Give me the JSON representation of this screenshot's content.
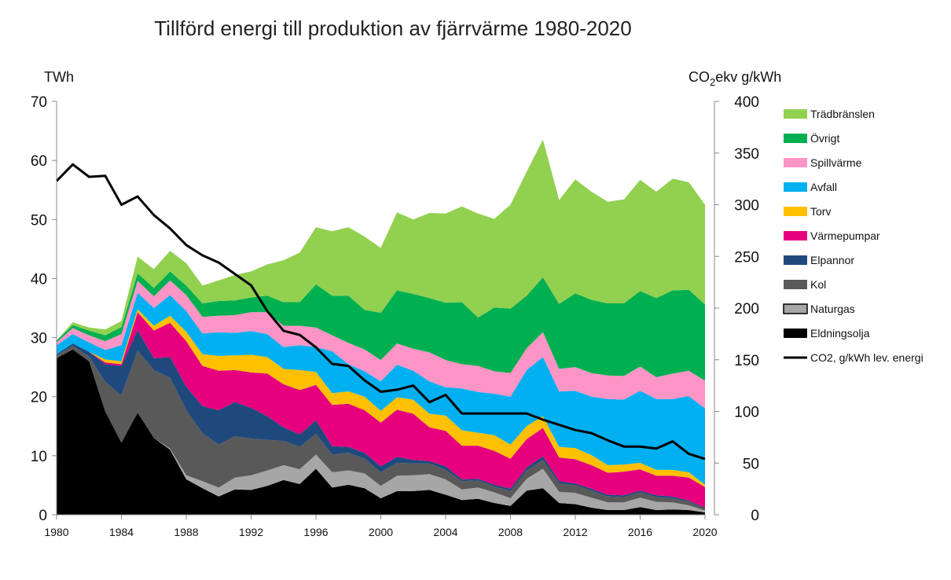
{
  "chart_data": {
    "type": "area",
    "title": "Tillförd energi till produktion av fjärrvärme 1980-2020",
    "ylabel_left": "TWh",
    "ylabel_right_base": "CO",
    "ylabel_right_sub": "2",
    "ylabel_right_rest": "ekv g/kWh",
    "ylim_left": [
      0,
      70
    ],
    "ylim_right": [
      0,
      400
    ],
    "yticks_left": [
      "0",
      "10",
      "20",
      "30",
      "40",
      "50",
      "60",
      "70"
    ],
    "yticks_right": [
      "0",
      "50",
      "100",
      "150",
      "200",
      "250",
      "300",
      "350",
      "400"
    ],
    "xlim": [
      1980,
      2020
    ],
    "xticks": [
      "1980",
      "1984",
      "1988",
      "1992",
      "1996",
      "2000",
      "2004",
      "2008",
      "2012",
      "2016",
      "2020"
    ],
    "stacked": true,
    "legend_position": "right",
    "x": [
      1980,
      1981,
      1982,
      1983,
      1984,
      1985,
      1986,
      1987,
      1988,
      1989,
      1990,
      1991,
      1992,
      1993,
      1994,
      1995,
      1996,
      1997,
      1998,
      1999,
      2000,
      2001,
      2002,
      2003,
      2004,
      2005,
      2006,
      2007,
      2008,
      2009,
      2010,
      2011,
      2012,
      2013,
      2014,
      2015,
      2016,
      2017,
      2018,
      2019,
      2020
    ],
    "series": [
      {
        "name": "Eldningsolja",
        "color": "#000000",
        "values": [
          26.5,
          28.0,
          26.0,
          17.5,
          12.2,
          17.3,
          13.0,
          11.0,
          6.0,
          4.5,
          3.1,
          4.3,
          4.2,
          4.9,
          5.9,
          5.2,
          7.8,
          4.6,
          5.1,
          4.5,
          2.8,
          4.0,
          4.0,
          4.2,
          3.4,
          2.5,
          2.7,
          2.0,
          1.5,
          4.1,
          4.5,
          2.0,
          1.8,
          1.2,
          0.8,
          0.8,
          1.3,
          0.8,
          0.9,
          0.8,
          0.4
        ]
      },
      {
        "name": "Naturgas",
        "color": "#a6a6a6",
        "values": [
          0,
          0,
          0,
          0,
          0,
          0,
          0,
          0.2,
          0.7,
          1.2,
          1.5,
          2.0,
          2.5,
          2.6,
          2.5,
          2.5,
          2.4,
          2.6,
          2.4,
          2.5,
          2.1,
          2.6,
          2.7,
          2.7,
          2.6,
          1.8,
          1.9,
          1.8,
          1.3,
          2.0,
          3.3,
          1.9,
          1.9,
          1.7,
          1.3,
          1.3,
          1.6,
          1.4,
          1.2,
          0.8,
          0.3
        ]
      },
      {
        "name": "Kol",
        "color": "#595959",
        "values": [
          0.5,
          0.6,
          0.8,
          5.0,
          8.0,
          10.5,
          11.5,
          12.0,
          11.0,
          8.1,
          7.3,
          7.0,
          6.2,
          5.2,
          4.1,
          3.8,
          3.5,
          3.0,
          3.0,
          2.5,
          2.3,
          2.2,
          2.0,
          1.8,
          1.6,
          1.4,
          1.2,
          1.0,
          1.2,
          1.4,
          1.5,
          1.4,
          1.3,
          1.2,
          1.0,
          0.9,
          0.9,
          0.8,
          0.7,
          0.6,
          0.3
        ]
      },
      {
        "name": "Elpannor",
        "color": "#1f497d",
        "values": [
          0.2,
          0.4,
          0.8,
          3.0,
          5.0,
          3.5,
          2.0,
          3.5,
          4.0,
          4.6,
          5.8,
          5.8,
          5.2,
          4.0,
          2.3,
          2.1,
          2.3,
          1.4,
          1.0,
          1.0,
          1.0,
          1.0,
          0.6,
          0.4,
          0.6,
          0.3,
          0.3,
          0.3,
          0.4,
          0.5,
          0.6,
          0.4,
          0.3,
          0.3,
          0.3,
          0.3,
          0.3,
          0.3,
          0.3,
          0.2,
          0.2
        ]
      },
      {
        "name": "Värmepumpar",
        "color": "#e6007e",
        "values": [
          0,
          0,
          0,
          0.3,
          0.3,
          3.0,
          4.7,
          5.8,
          7.7,
          6.8,
          6.7,
          5.4,
          6.0,
          7.2,
          7.3,
          7.5,
          6.0,
          7.0,
          7.3,
          7.2,
          7.4,
          8.0,
          7.8,
          5.7,
          6.0,
          5.7,
          5.6,
          5.7,
          5.1,
          4.8,
          4.8,
          4.0,
          4.1,
          4.0,
          3.7,
          4.0,
          3.6,
          3.3,
          3.5,
          3.9,
          3.5
        ]
      },
      {
        "name": "Torv",
        "color": "#ffc000",
        "values": [
          0,
          0,
          0,
          0.5,
          0.5,
          0.5,
          0.8,
          1.2,
          1.6,
          2.0,
          2.5,
          2.5,
          3.0,
          2.8,
          2.6,
          3.4,
          2.2,
          2.0,
          2.1,
          2.3,
          2.0,
          2.1,
          2.4,
          2.3,
          2.6,
          2.6,
          2.2,
          2.7,
          2.4,
          2.2,
          2.0,
          1.8,
          1.9,
          1.7,
          1.3,
          1.2,
          1.1,
          1.0,
          1.0,
          0.9,
          0.4
        ]
      },
      {
        "name": "Avfall",
        "color": "#00b0f0",
        "values": [
          1.5,
          1.6,
          1.6,
          1.6,
          2.7,
          2.8,
          3.0,
          3.5,
          3.5,
          3.5,
          4.0,
          3.8,
          4.0,
          3.9,
          3.7,
          4.2,
          4.2,
          7.1,
          4.6,
          4.3,
          5.0,
          5.5,
          4.9,
          5.5,
          4.8,
          7.1,
          6.9,
          7.0,
          8.1,
          9.5,
          10.0,
          9.4,
          9.7,
          9.9,
          11.2,
          11.0,
          12.2,
          12.0,
          12.0,
          12.9,
          12.9
        ]
      },
      {
        "name": "Spillvärme",
        "color": "#ff94c7",
        "values": [
          0.5,
          1.0,
          1.2,
          1.5,
          1.9,
          2.0,
          2.0,
          2.5,
          2.7,
          2.8,
          2.8,
          3.0,
          3.2,
          3.7,
          3.6,
          3.3,
          3.3,
          2.7,
          3.6,
          3.7,
          3.6,
          3.6,
          3.7,
          4.9,
          4.6,
          4.1,
          4.4,
          3.8,
          4.0,
          3.7,
          4.2,
          3.8,
          4.0,
          4.0,
          4.0,
          4.0,
          4.1,
          3.7,
          4.3,
          4.3,
          4.7
        ]
      },
      {
        "name": "Övrigt",
        "color": "#00b050",
        "values": [
          0.3,
          0.5,
          0.8,
          1.0,
          1.2,
          1.3,
          1.4,
          1.5,
          1.6,
          2.3,
          2.5,
          2.5,
          2.5,
          2.8,
          4.0,
          4.0,
          7.3,
          6.7,
          8.0,
          6.7,
          8.0,
          9.0,
          9.3,
          9.2,
          9.7,
          10.5,
          8.2,
          10.8,
          10.9,
          8.9,
          9.3,
          11.0,
          12.5,
          12.4,
          12.2,
          12.3,
          12.8,
          13.4,
          14.1,
          13.7,
          12.9
        ]
      },
      {
        "name": "Trädbränslen",
        "color": "#92d050",
        "values": [
          0,
          0.5,
          0.5,
          1.0,
          1.0,
          2.8,
          3.2,
          3.5,
          3.8,
          3.0,
          3.5,
          4.3,
          4.4,
          5.3,
          7.1,
          8.4,
          9.7,
          10.9,
          11.6,
          12.4,
          11.0,
          13.2,
          12.6,
          14.4,
          15.1,
          16.2,
          17.6,
          15.0,
          17.6,
          21.0,
          23.3,
          17.6,
          19.3,
          18.3,
          17.2,
          17.6,
          18.8,
          18.0,
          18.9,
          18.2,
          16.9
        ]
      }
    ],
    "line_series": {
      "name": "CO2, g/kWh lev. energi",
      "color": "#000000",
      "axis": "right",
      "values": [
        323,
        339,
        327,
        328,
        300,
        308,
        290,
        277,
        261,
        251,
        244,
        233,
        222,
        197,
        178,
        174,
        162,
        146,
        144,
        130,
        119,
        121,
        125,
        109,
        116,
        98,
        98,
        98,
        98,
        98,
        92,
        87,
        82,
        79,
        72,
        66,
        66,
        64,
        71,
        59,
        54
      ]
    }
  }
}
